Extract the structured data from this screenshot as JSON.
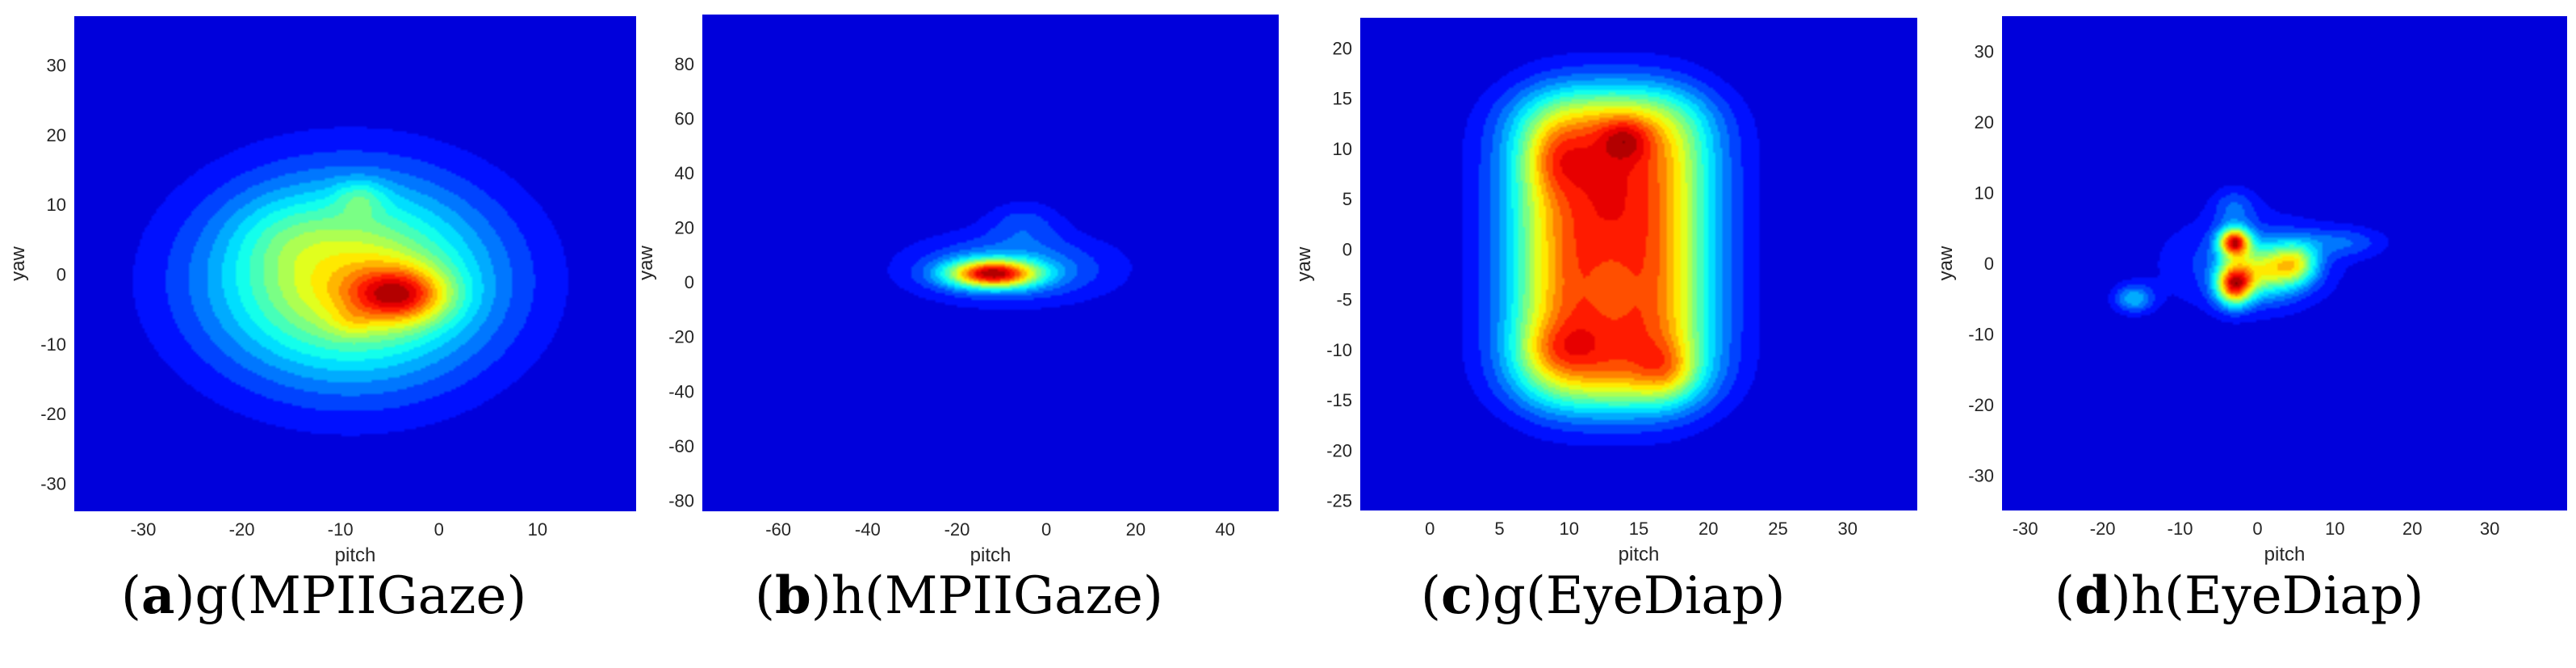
{
  "colors": {
    "background": "#00008f",
    "colormap": "jet"
  },
  "chart_data": [
    {
      "type": "heatmap",
      "panel_letter": "a",
      "caption_text": "g(MPIIGaze)",
      "xlabel": "pitch",
      "ylabel": "yaw",
      "xlim": [
        -37,
        20
      ],
      "ylim": [
        -34,
        37
      ],
      "xticks": [
        -30,
        -20,
        -10,
        0,
        10
      ],
      "yticks": [
        -30,
        -20,
        -10,
        0,
        10,
        20,
        30
      ],
      "blobs": [
        {
          "x": -9,
          "y": -1,
          "sx": 10,
          "sy": 10,
          "w": 0.55
        },
        {
          "x": -4,
          "y": -3,
          "sx": 3.5,
          "sy": 2.8,
          "w": 0.38
        },
        {
          "x": -8,
          "y": 11,
          "sx": 1.8,
          "sy": 1.8,
          "w": 0.12
        },
        {
          "x": -9,
          "y": -7,
          "sx": 1.5,
          "sy": 1.5,
          "w": 0.06
        },
        {
          "x": -16,
          "y": 6,
          "sx": 4,
          "sy": 4,
          "w": 0.05
        }
      ]
    },
    {
      "type": "heatmap",
      "panel_letter": "b",
      "caption_text": "h(MPIIGaze)",
      "xlabel": "pitch",
      "ylabel": "yaw",
      "xlim": [
        -77,
        52
      ],
      "ylim": [
        -84,
        98
      ],
      "xticks": [
        -60,
        -40,
        -20,
        0,
        20,
        40
      ],
      "yticks": [
        -80,
        -60,
        -40,
        -20,
        0,
        20,
        40,
        60,
        80
      ],
      "blobs": [
        {
          "x": -12,
          "y": 3,
          "sx": 7,
          "sy": 3.5,
          "w": 0.85
        },
        {
          "x": -8,
          "y": 5,
          "sx": 16,
          "sy": 9,
          "w": 0.25
        },
        {
          "x": -5,
          "y": 22,
          "sx": 6,
          "sy": 6,
          "w": 0.12
        }
      ]
    },
    {
      "type": "heatmap",
      "panel_letter": "c",
      "caption_text": "g(EyeDiap)",
      "xlabel": "pitch",
      "ylabel": "yaw",
      "xlim": [
        -5,
        35
      ],
      "ylim": [
        -26,
        23
      ],
      "xticks": [
        0,
        5,
        10,
        15,
        20,
        25,
        30
      ],
      "yticks": [
        -25,
        -20,
        -15,
        -10,
        -5,
        0,
        5,
        10,
        15,
        20
      ],
      "rect": {
        "x0": 7,
        "x1": 19,
        "y0": -15,
        "y1": 15,
        "soft": 1.7,
        "w": 0.78
      },
      "blobs": [
        {
          "x": 9,
          "y": 9,
          "sx": 1.5,
          "sy": 2.5,
          "w": 0.12
        },
        {
          "x": 14,
          "y": 11,
          "sx": 1.3,
          "sy": 1.5,
          "w": 0.14
        },
        {
          "x": 9,
          "y": -10,
          "sx": 2,
          "sy": 2,
          "w": 0.12
        },
        {
          "x": 17,
          "y": -12,
          "sx": 1.5,
          "sy": 2,
          "w": 0.14
        },
        {
          "x": 13,
          "y": -4,
          "sx": 1.4,
          "sy": 3.5,
          "w": -0.08
        }
      ]
    },
    {
      "type": "heatmap",
      "panel_letter": "d",
      "caption_text": "h(EyeDiap)",
      "xlabel": "pitch",
      "ylabel": "yaw",
      "xlim": [
        -33,
        40
      ],
      "ylim": [
        -35,
        35
      ],
      "xticks": [
        -30,
        -20,
        -10,
        0,
        10,
        20,
        30
      ],
      "yticks": [
        -30,
        -20,
        -10,
        0,
        10,
        20,
        30
      ],
      "blobs": [
        {
          "x": -3,
          "y": 3,
          "sx": 1.4,
          "sy": 1.4,
          "w": 0.85
        },
        {
          "x": -3,
          "y": -3,
          "sx": 1.6,
          "sy": 2.0,
          "w": 0.8
        },
        {
          "x": 1,
          "y": -1,
          "sx": 3,
          "sy": 2.5,
          "w": 0.45
        },
        {
          "x": 5,
          "y": 0,
          "sx": 2,
          "sy": 2,
          "w": 0.4
        },
        {
          "x": -1,
          "y": 0,
          "sx": 8,
          "sy": 5,
          "w": 0.18
        },
        {
          "x": 11,
          "y": 3,
          "sx": 4,
          "sy": 1.5,
          "w": 0.15
        },
        {
          "x": -16,
          "y": -5,
          "sx": 1.8,
          "sy": 1.4,
          "w": 0.28
        },
        {
          "x": -3,
          "y": 8,
          "sx": 2,
          "sy": 2,
          "w": 0.15
        }
      ]
    }
  ]
}
